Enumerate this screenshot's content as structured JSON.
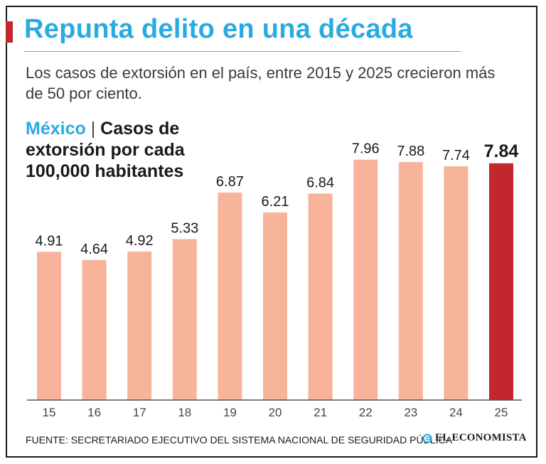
{
  "header": {
    "title": "Repunta delito en una década",
    "subtitle": "Los casos de extorsión en el país, entre 2015 y 2025 crecieron más de 50 por ciento."
  },
  "chart_title": {
    "country": "México",
    "separator": "|",
    "metric": "Casos de extorsión por cada 100,000 habitantes"
  },
  "chart_data": {
    "type": "bar",
    "title": "Casos de extorsión por cada 100,000 habitantes",
    "categories": [
      "15",
      "16",
      "17",
      "18",
      "19",
      "20",
      "21",
      "22",
      "23",
      "24",
      "25"
    ],
    "values": [
      4.91,
      4.64,
      4.92,
      5.33,
      6.87,
      6.21,
      6.84,
      7.96,
      7.88,
      7.74,
      7.84
    ],
    "value_labels": [
      "4.91",
      "4.64",
      "4.92",
      "5.33",
      "6.87",
      "6.21",
      "6.84",
      "7.96",
      "7.88",
      "7.74",
      "7.84"
    ],
    "highlight_index": 10,
    "xlabel": "",
    "ylabel": "",
    "ylim": [
      0,
      8
    ],
    "grid": false,
    "colors": {
      "bar": "#f7b49a",
      "highlight": "#c1272d",
      "label": "#1a1a1a",
      "tick": "#444444",
      "axis": "#555555"
    }
  },
  "footer": {
    "source": "FUENTE: SECRETARIADO EJECUTIVO DEL SISTEMA NACIONAL DE SEGURIDAD PÚBLICA",
    "brand": "EL ECONOMISTA"
  },
  "colors": {
    "title": "#29abe2",
    "accent": "#c1272d"
  }
}
